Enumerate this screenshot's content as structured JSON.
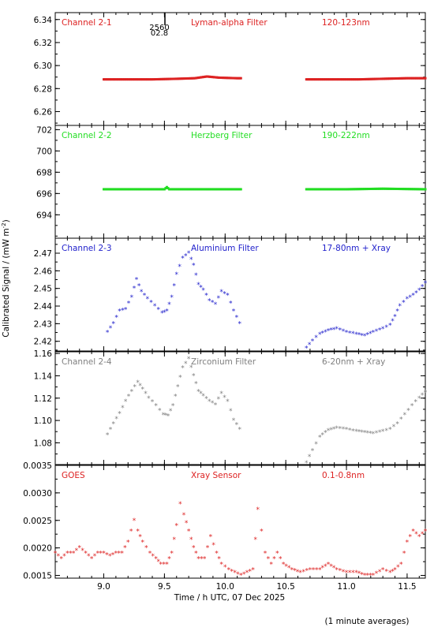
{
  "figure": {
    "ylabel_main": "Calibrated Signal / (mW m",
    "ylabel_sup": "-2",
    "ylabel_close": ")",
    "xlabel": "Time / h UTC, 07 Dec 2025",
    "footnote": "(1 minute averages)",
    "marker_top": "2560",
    "marker_bottom": "02.8"
  },
  "chart_data": [
    {
      "type": "scatter",
      "labels": [
        "Channel 2-1",
        "Lyman-alpha Filter",
        "120-123nm"
      ],
      "color": "#dd2222",
      "xlim": [
        8.6,
        11.65
      ],
      "ylim": [
        6.248,
        6.346
      ],
      "yticks": [
        6.26,
        6.28,
        6.3,
        6.32,
        6.34
      ],
      "ytick_labels": [
        "6.26",
        "6.28",
        "6.30",
        "6.32",
        "6.34"
      ],
      "series": [
        {
          "x": [
            9.0,
            9.2,
            9.4,
            9.6,
            9.75,
            9.85,
            9.95,
            10.1,
            10.13
          ],
          "y": [
            6.288,
            6.288,
            6.288,
            6.2885,
            6.289,
            6.2905,
            6.2895,
            6.289,
            6.289
          ]
        },
        {
          "x": [
            10.67,
            10.9,
            11.1,
            11.3,
            11.5,
            11.65
          ],
          "y": [
            6.288,
            6.288,
            6.288,
            6.2885,
            6.289,
            6.289
          ]
        }
      ]
    },
    {
      "type": "scatter",
      "labels": [
        "Channel 2-2",
        "Herzberg Filter",
        "190-222nm"
      ],
      "color": "#22dd22",
      "xlim": [
        8.6,
        11.65
      ],
      "ylim": [
        691.8,
        702.4
      ],
      "yticks": [
        694,
        696,
        698,
        700,
        702
      ],
      "ytick_labels": [
        "694",
        "696",
        "698",
        "700",
        "702"
      ],
      "series": [
        {
          "x": [
            9.0,
            9.3,
            9.5,
            9.52,
            9.54,
            9.8,
            10.13
          ],
          "y": [
            696.4,
            696.4,
            696.4,
            696.6,
            696.4,
            696.4,
            696.4
          ]
        },
        {
          "x": [
            10.67,
            11.0,
            11.3,
            11.65
          ],
          "y": [
            696.4,
            696.4,
            696.45,
            696.4
          ]
        }
      ]
    },
    {
      "type": "scatter",
      "labels": [
        "Channel 2-3",
        "Aluminium Filter",
        "17-80nm + Xray"
      ],
      "color": "#2222cc",
      "xlim": [
        8.6,
        11.65
      ],
      "ylim": [
        2.4145,
        2.4785
      ],
      "yticks": [
        2.42,
        2.43,
        2.44,
        2.45,
        2.46,
        2.47
      ],
      "ytick_labels": [
        "2.42",
        "2.43",
        "2.44",
        "2.45",
        "2.46",
        "2.47"
      ],
      "series": [
        {
          "x": [
            9.03,
            9.08,
            9.13,
            9.18,
            9.23,
            9.27,
            9.31,
            9.36,
            9.42,
            9.48,
            9.52,
            9.56,
            9.6,
            9.65,
            9.7,
            9.74,
            9.78,
            9.82,
            9.87,
            9.92,
            9.97,
            10.02,
            10.07,
            10.12
          ],
          "y": [
            2.425,
            2.43,
            2.437,
            2.438,
            2.445,
            2.455,
            2.448,
            2.444,
            2.44,
            2.436,
            2.437,
            2.445,
            2.458,
            2.467,
            2.47,
            2.463,
            2.452,
            2.449,
            2.443,
            2.441,
            2.448,
            2.446,
            2.437,
            2.43
          ]
        },
        {
          "x": [
            10.67,
            10.72,
            10.78,
            10.85,
            10.92,
            11.0,
            11.08,
            11.15,
            11.22,
            11.3,
            11.36,
            11.4,
            11.44,
            11.5,
            11.55,
            11.6,
            11.65
          ],
          "y": [
            2.416,
            2.42,
            2.424,
            2.426,
            2.427,
            2.425,
            2.424,
            2.423,
            2.425,
            2.427,
            2.429,
            2.434,
            2.44,
            2.444,
            2.446,
            2.449,
            2.453
          ]
        }
      ]
    },
    {
      "type": "scatter",
      "labels": [
        "Channel 2-4",
        "Zirconium Filter",
        "6-20nm + Xray"
      ],
      "color": "#808080",
      "xlim": [
        8.6,
        11.65
      ],
      "ylim": [
        1.0605,
        1.1615
      ],
      "yticks": [
        1.08,
        1.1,
        1.12,
        1.14,
        1.16
      ],
      "ytick_labels": [
        "1.08",
        "1.10",
        "1.12",
        "1.14",
        "1.16"
      ],
      "series": [
        {
          "x": [
            9.03,
            9.08,
            9.13,
            9.18,
            9.23,
            9.28,
            9.32,
            9.37,
            9.43,
            9.49,
            9.53,
            9.57,
            9.61,
            9.65,
            9.7,
            9.74,
            9.78,
            9.82,
            9.87,
            9.92,
            9.97,
            10.02,
            10.07,
            10.12
          ],
          "y": [
            1.087,
            1.097,
            1.106,
            1.117,
            1.126,
            1.134,
            1.128,
            1.12,
            1.113,
            1.105,
            1.104,
            1.113,
            1.13,
            1.147,
            1.155,
            1.14,
            1.126,
            1.122,
            1.117,
            1.114,
            1.124,
            1.117,
            1.1,
            1.092
          ]
        },
        {
          "x": [
            10.67,
            10.72,
            10.78,
            10.85,
            10.92,
            11.0,
            11.08,
            11.15,
            11.22,
            11.3,
            11.36,
            11.42,
            11.48,
            11.54,
            11.6,
            11.65
          ],
          "y": [
            1.062,
            1.073,
            1.085,
            1.091,
            1.093,
            1.092,
            1.09,
            1.089,
            1.088,
            1.09,
            1.092,
            1.097,
            1.105,
            1.113,
            1.12,
            1.125
          ]
        }
      ]
    },
    {
      "type": "scatter",
      "labels": [
        "GOES",
        "Xray Sensor",
        "0.1-0.8nm"
      ],
      "color": "#dd2222",
      "xlim": [
        8.6,
        11.65
      ],
      "ylim": [
        0.00145,
        0.0035
      ],
      "yticks": [
        0.0015,
        0.002,
        0.0025,
        0.003,
        0.0035
      ],
      "ytick_labels": [
        "0.0015",
        "0.0020",
        "0.0025",
        "0.0030",
        "0.0035"
      ],
      "series": [
        {
          "x": [
            8.6,
            8.65,
            8.7,
            8.75,
            8.8,
            8.85,
            8.9,
            8.95,
            9.0,
            9.05,
            9.1,
            9.15,
            9.2,
            9.25,
            9.28,
            9.32,
            9.38,
            9.43,
            9.47,
            9.52,
            9.56,
            9.6,
            9.63,
            9.66,
            9.7,
            9.74,
            9.78,
            9.83,
            9.88,
            9.93,
            9.97,
            10.03,
            10.08,
            10.13,
            10.18,
            10.23,
            10.27,
            10.33,
            10.38,
            10.43,
            10.48,
            10.55,
            10.62,
            10.7,
            10.78,
            10.85,
            10.92,
            11.0,
            11.08,
            11.15,
            11.22,
            11.3,
            11.36,
            11.4,
            11.45,
            11.5,
            11.55,
            11.6,
            11.65
          ],
          "y": [
            0.0019,
            0.0018,
            0.0019,
            0.0019,
            0.002,
            0.0019,
            0.0018,
            0.0019,
            0.0019,
            0.00185,
            0.0019,
            0.0019,
            0.0021,
            0.0025,
            0.0023,
            0.0021,
            0.0019,
            0.0018,
            0.0017,
            0.0017,
            0.0019,
            0.0024,
            0.0028,
            0.0026,
            0.0023,
            0.002,
            0.0018,
            0.0018,
            0.0022,
            0.0019,
            0.0017,
            0.0016,
            0.00155,
            0.0015,
            0.00155,
            0.0016,
            0.0027,
            0.0019,
            0.0017,
            0.0019,
            0.0017,
            0.0016,
            0.00155,
            0.0016,
            0.0016,
            0.0017,
            0.0016,
            0.00155,
            0.00155,
            0.0015,
            0.0015,
            0.0016,
            0.00155,
            0.0016,
            0.0017,
            0.0021,
            0.0023,
            0.0022,
            0.0023
          ]
        }
      ]
    }
  ],
  "xaxis": {
    "ticks": [
      9.0,
      9.5,
      10.0,
      10.5,
      11.0,
      11.5
    ],
    "tick_labels": [
      "9.0",
      "9.5",
      "10.0",
      "10.5",
      "11.0",
      "11.5"
    ]
  }
}
